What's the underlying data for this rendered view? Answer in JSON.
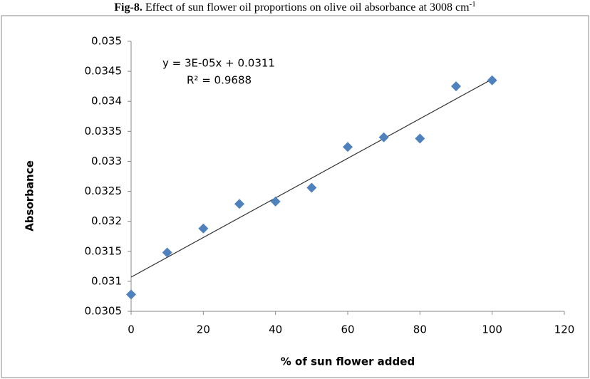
{
  "chart_data": {
    "type": "scatter",
    "title": {
      "prefix": "Fig-8.",
      "text": "Effect of sun flower oil proportions on olive oil absorbance at 3008 cm",
      "superscript": "-1"
    },
    "xlabel": "% of sun flower added",
    "ylabel": "Absorbance",
    "annotations": [
      "y = 3E-05x + 0.0311",
      "R² = 0.9688"
    ],
    "x": [
      0,
      10,
      20,
      30,
      40,
      50,
      60,
      70,
      80,
      90,
      100
    ],
    "series": [
      {
        "color": "#4f81bd",
        "values": [
          0.03078,
          0.03148,
          0.03188,
          0.03229,
          0.03233,
          0.03256,
          0.03324,
          0.0334,
          0.03338,
          0.03425,
          0.03435
        ]
      }
    ],
    "trendline": {
      "x": [
        0,
        100
      ],
      "values": [
        0.03107,
        0.03437
      ],
      "color": "#333333"
    },
    "xlim": [
      0,
      120
    ],
    "xticks": [
      0,
      20,
      40,
      60,
      80,
      100,
      120
    ],
    "ylim": [
      0.0305,
      0.035
    ],
    "yticks": [
      0.0305,
      0.031,
      0.0315,
      0.032,
      0.0325,
      0.033,
      0.0335,
      0.034,
      0.0345,
      0.035
    ],
    "grid": false
  }
}
